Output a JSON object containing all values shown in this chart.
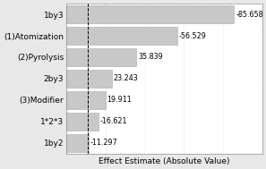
{
  "categories": [
    "1by3",
    "(1)Atomization",
    "(2)Pyrolysis",
    "2by3",
    "(3)Modifier",
    "1*2*3",
    "1by2"
  ],
  "values": [
    85.658,
    56.529,
    35.839,
    23.243,
    19.911,
    16.621,
    11.297
  ],
  "labels": [
    "-85.658",
    "-56.529",
    "35.839",
    "23.243",
    "19.911",
    "-16.621",
    "-11.297"
  ],
  "bar_color": "#c8c8c8",
  "bar_edge_color": "#aaaaaa",
  "fig_background_color": "#e8e8e8",
  "plot_background_color": "#ffffff",
  "xlabel": "Effect Estimate (Absolute Value)",
  "xlabel_fontsize": 6.5,
  "ylabel_fontsize": 6.5,
  "label_fontsize": 5.8,
  "xlim": [
    0,
    100
  ],
  "dashed_line_x": 11,
  "bar_height": 0.82
}
